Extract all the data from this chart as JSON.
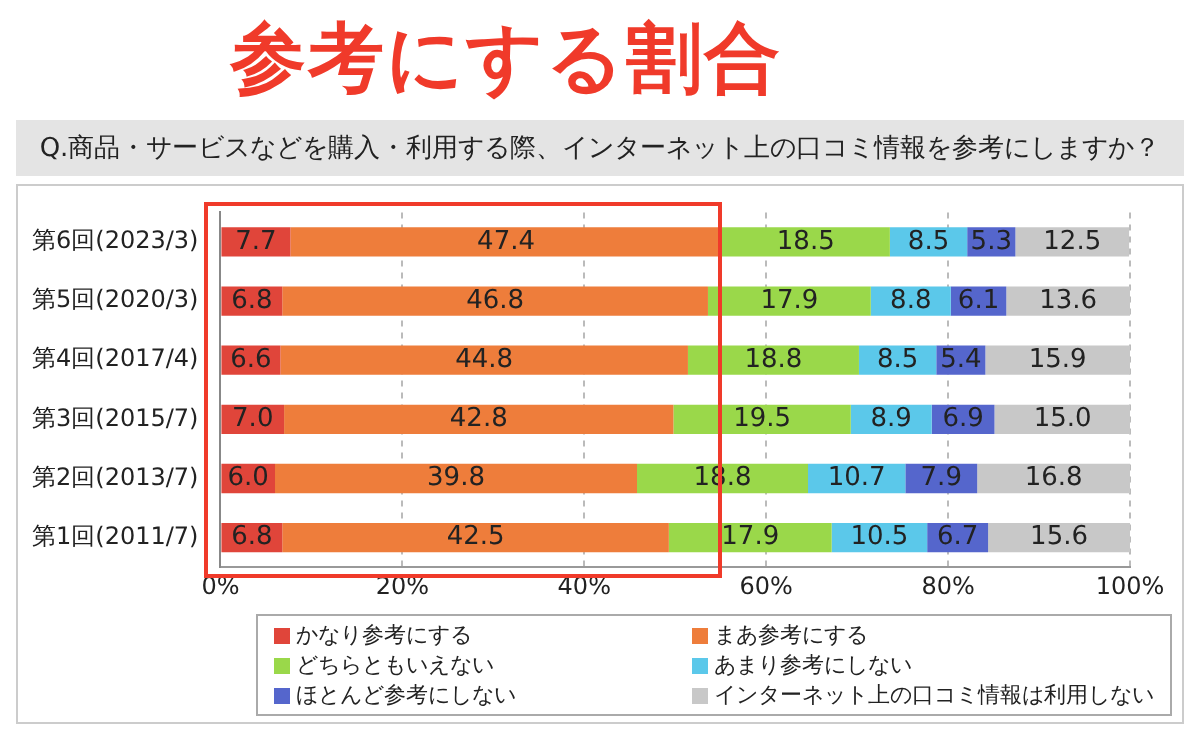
{
  "chart_data": {
    "type": "bar",
    "orientation": "horizontal",
    "stacked": true,
    "title": "参考にする割合",
    "subtitle": "Q.商品・サービスなどを購入・利用する際、インターネット上の口コミ情報を参考にしますか？",
    "categories": [
      "第6回(2023/3)",
      "第5回(2020/3)",
      "第4回(2017/4)",
      "第3回(2015/7)",
      "第2回(2013/7)",
      "第1回(2011/7)"
    ],
    "series": [
      {
        "name": "かなり参考にする",
        "color": "#e0453a",
        "values": [
          7.7,
          6.8,
          6.6,
          7.0,
          6.0,
          6.8
        ],
        "value_labels": [
          "7.7",
          "6.8",
          "6.6",
          "7.0",
          "6.0",
          "6.8"
        ]
      },
      {
        "name": "まあ参考にする",
        "color": "#ee7d3b",
        "values": [
          47.4,
          46.8,
          44.8,
          42.8,
          39.8,
          42.5
        ]
      },
      {
        "name": "どちらともいえない",
        "color": "#9ad84a",
        "values": [
          18.5,
          17.9,
          18.8,
          19.5,
          18.8,
          17.9
        ]
      },
      {
        "name": "あまり参考にしない",
        "color": "#5bc8ea",
        "values": [
          8.5,
          8.8,
          8.5,
          8.9,
          10.7,
          10.5
        ]
      },
      {
        "name": "ほとんど参考にしない",
        "color": "#5566cc",
        "values": [
          5.3,
          6.1,
          5.4,
          6.9,
          7.9,
          6.7
        ]
      },
      {
        "name": "インターネット上の口コミ情報は利用しない",
        "color": "#c8c8c8",
        "values": [
          12.5,
          13.6,
          15.9,
          15.0,
          16.8,
          15.6
        ],
        "value_labels": [
          "12.5",
          "13.6",
          "15.9",
          "15.0",
          "16.8",
          "15.6"
        ]
      }
    ],
    "xlim": [
      0,
      100
    ],
    "xticks": [
      {
        "value": 0,
        "label": "0%"
      },
      {
        "value": 20,
        "label": "20%"
      },
      {
        "value": 40,
        "label": "40%"
      },
      {
        "value": 60,
        "label": "60%"
      },
      {
        "value": 80,
        "label": "80%"
      },
      {
        "value": 100,
        "label": "100%"
      }
    ],
    "grid": "x",
    "data_labels": true,
    "legend": "bottom"
  }
}
